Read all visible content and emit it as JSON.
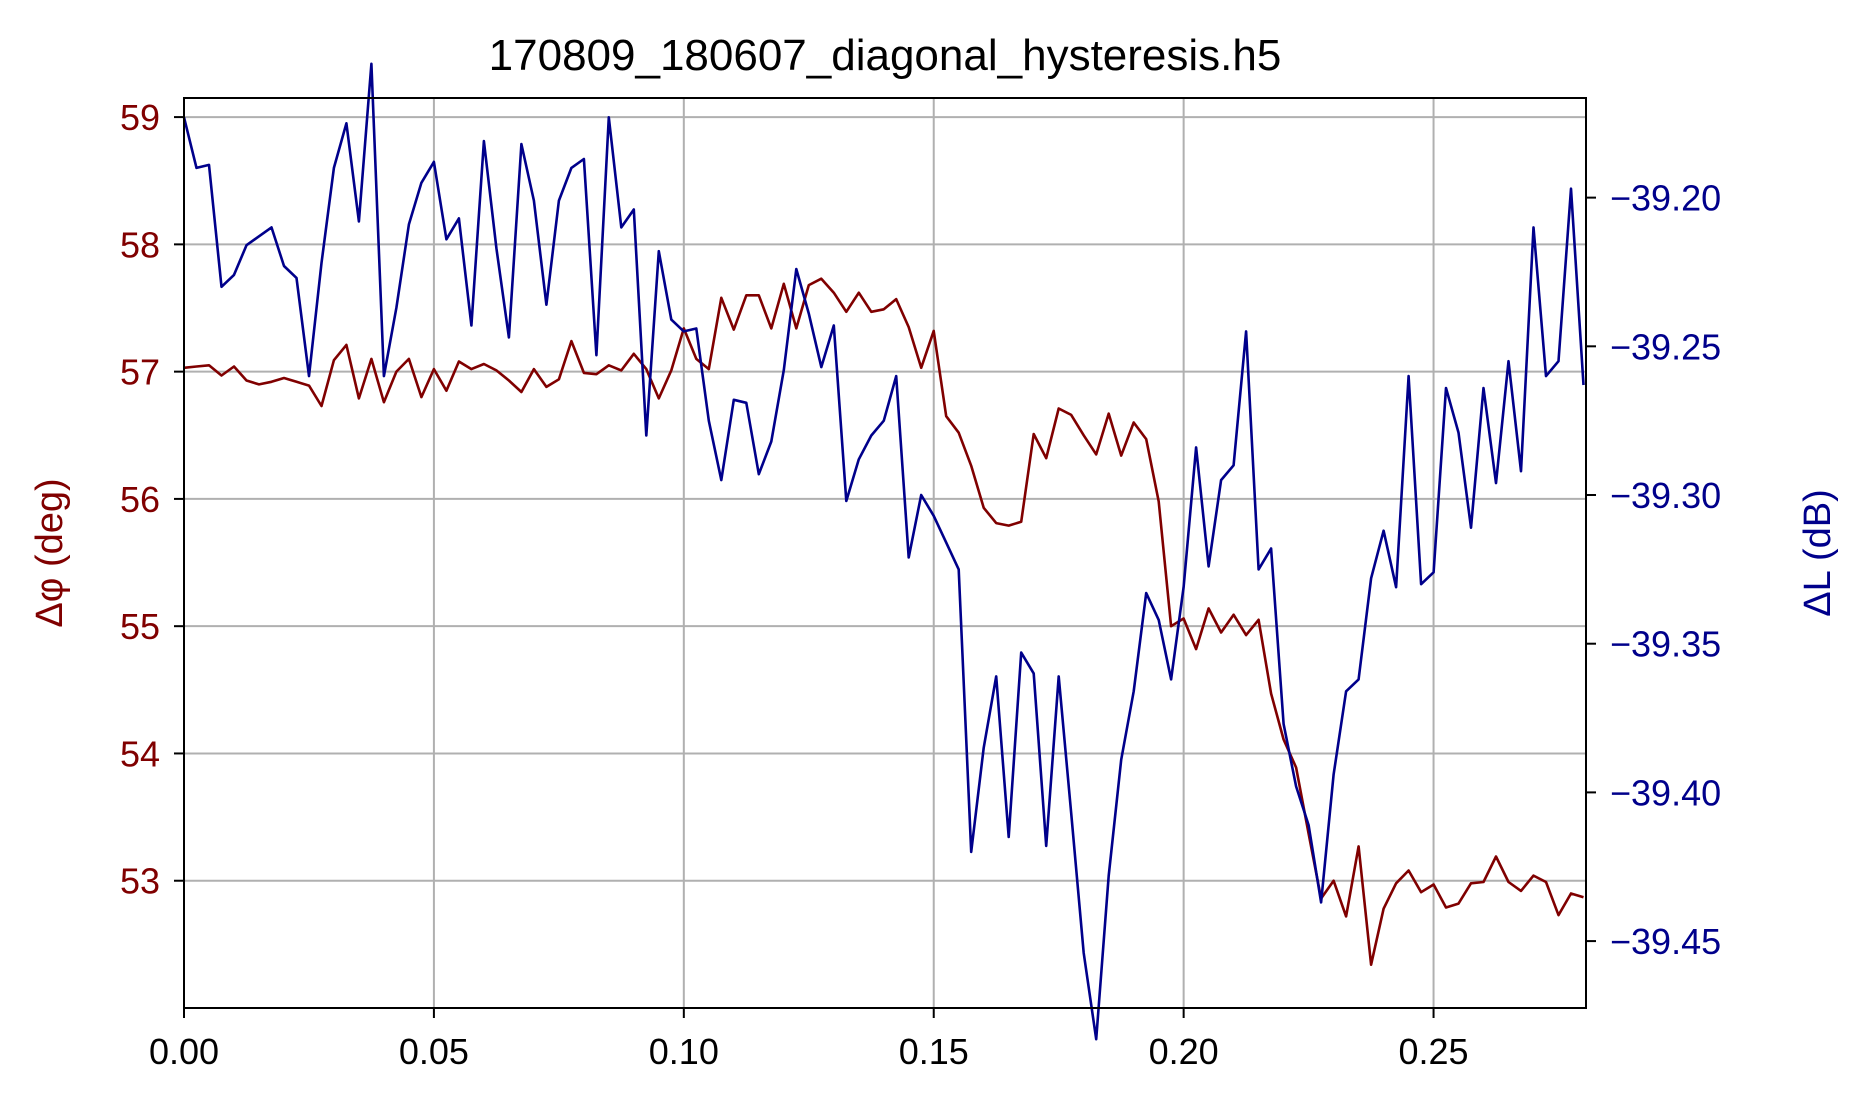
{
  "chart_data": {
    "type": "line",
    "title": "170809_180607_diagonal_hysteresis.h5",
    "xlabel": "",
    "ylabel_left": "Δφ (deg)",
    "ylabel_right": "ΔL (dB)",
    "xlim": [
      0.0,
      0.2805
    ],
    "ylim_left": [
      52.0,
      59.15
    ],
    "ylim_right": [
      -39.4725,
      -39.1665
    ],
    "x_ticks": [
      0.0,
      0.05,
      0.1,
      0.15,
      0.2,
      0.25
    ],
    "x_tick_labels": [
      "0.00",
      "0.05",
      "0.10",
      "0.15",
      "0.20",
      "0.25"
    ],
    "y_left_ticks": [
      53,
      54,
      55,
      56,
      57,
      58,
      59
    ],
    "y_left_tick_labels": [
      "53",
      "54",
      "55",
      "56",
      "57",
      "58",
      "59"
    ],
    "y_right_ticks": [
      -39.45,
      -39.4,
      -39.35,
      -39.3,
      -39.25,
      -39.2
    ],
    "y_right_tick_labels": [
      "−39.45",
      "−39.40",
      "−39.35",
      "−39.30",
      "−39.25",
      "−39.20"
    ],
    "grid": true,
    "colors": {
      "left": "#800000",
      "right": "#00008b",
      "grid": "#b0b0b0"
    },
    "x": [
      0.0,
      0.0025,
      0.005,
      0.0075,
      0.01,
      0.0125,
      0.015,
      0.0175,
      0.02,
      0.0225,
      0.025,
      0.0275,
      0.03,
      0.0325,
      0.035,
      0.0375,
      0.04,
      0.0425,
      0.045,
      0.0475,
      0.05,
      0.0525,
      0.055,
      0.0575,
      0.06,
      0.0625,
      0.065,
      0.0675,
      0.07,
      0.0725,
      0.075,
      0.0775,
      0.08,
      0.0825,
      0.085,
      0.0875,
      0.09,
      0.0925,
      0.095,
      0.0975,
      0.1,
      0.1025,
      0.105,
      0.1075,
      0.11,
      0.1125,
      0.115,
      0.1175,
      0.12,
      0.1225,
      0.125,
      0.1275,
      0.13,
      0.1325,
      0.135,
      0.1375,
      0.14,
      0.1425,
      0.145,
      0.1475,
      0.15,
      0.1525,
      0.155,
      0.1575,
      0.16,
      0.1625,
      0.165,
      0.1675,
      0.17,
      0.1725,
      0.175,
      0.1775,
      0.18,
      0.1825,
      0.185,
      0.1875,
      0.19,
      0.1925,
      0.195,
      0.1975,
      0.2,
      0.2025,
      0.205,
      0.2075,
      0.21,
      0.2125,
      0.215,
      0.2175,
      0.22,
      0.2225,
      0.225,
      0.2275,
      0.23,
      0.2325,
      0.235,
      0.2375,
      0.24,
      0.2425,
      0.245,
      0.2475,
      0.25,
      0.2525,
      0.255,
      0.2575,
      0.26,
      0.2625,
      0.265,
      0.2675,
      0.27,
      0.2725,
      0.275,
      0.2775,
      0.28
    ],
    "series": [
      {
        "axis": "left",
        "color": "#800000",
        "values": [
          57.03,
          57.04,
          57.05,
          56.97,
          57.04,
          56.93,
          56.9,
          56.92,
          56.95,
          56.92,
          56.89,
          56.73,
          57.09,
          57.21,
          56.79,
          57.1,
          56.76,
          57.0,
          57.1,
          56.8,
          57.02,
          56.85,
          57.08,
          57.02,
          57.06,
          57.01,
          56.93,
          56.84,
          57.02,
          56.88,
          56.94,
          57.24,
          56.99,
          56.98,
          57.05,
          57.01,
          57.14,
          57.02,
          56.79,
          57.01,
          57.34,
          57.1,
          57.02,
          57.58,
          57.33,
          57.6,
          57.6,
          57.34,
          57.69,
          57.34,
          57.68,
          57.73,
          57.62,
          57.47,
          57.62,
          57.47,
          57.49,
          57.57,
          57.35,
          57.03,
          57.32,
          56.65,
          56.52,
          56.26,
          55.93,
          55.81,
          55.79,
          55.82,
          56.51,
          56.32,
          56.71,
          56.66,
          56.5,
          56.35,
          56.67,
          56.34,
          56.6,
          56.47,
          55.98,
          55.0,
          55.06,
          54.82,
          55.14,
          54.95,
          55.09,
          54.93,
          55.05,
          54.47,
          54.11,
          53.89,
          53.37,
          52.86,
          53.0,
          52.72,
          53.27,
          52.34,
          52.78,
          52.98,
          53.08,
          52.91,
          52.97,
          52.79,
          52.82,
          52.98,
          52.99,
          53.19,
          52.99,
          52.92,
          53.04,
          52.99,
          52.73,
          52.9,
          52.87
        ]
      },
      {
        "axis": "right",
        "color": "#00008b",
        "values": [
          -39.173,
          -39.19,
          -39.189,
          -39.23,
          -39.226,
          -39.216,
          -39.213,
          -39.21,
          -39.223,
          -39.227,
          -39.26,
          -39.222,
          -39.19,
          -39.175,
          -39.208,
          -39.155,
          -39.26,
          -39.237,
          -39.209,
          -39.195,
          -39.188,
          -39.214,
          -39.207,
          -39.243,
          -39.181,
          -39.217,
          -39.247,
          -39.182,
          -39.201,
          -39.236,
          -39.201,
          -39.19,
          -39.187,
          -39.253,
          -39.173,
          -39.21,
          -39.204,
          -39.28,
          -39.218,
          -39.241,
          -39.245,
          -39.244,
          -39.275,
          -39.295,
          -39.268,
          -39.269,
          -39.293,
          -39.282,
          -39.258,
          -39.224,
          -39.239,
          -39.257,
          -39.243,
          -39.302,
          -39.288,
          -39.28,
          -39.275,
          -39.26,
          -39.321,
          -39.3,
          -39.307,
          -39.316,
          -39.325,
          -39.42,
          -39.385,
          -39.361,
          -39.415,
          -39.353,
          -39.36,
          -39.418,
          -39.361,
          -39.407,
          -39.454,
          -39.483,
          -39.428,
          -39.389,
          -39.366,
          -39.333,
          -39.342,
          -39.362,
          -39.331,
          -39.284,
          -39.324,
          -39.295,
          -39.29,
          -39.245,
          -39.325,
          -39.318,
          -39.377,
          -39.398,
          -39.411,
          -39.437,
          -39.394,
          -39.366,
          -39.362,
          -39.328,
          -39.312,
          -39.331,
          -39.26,
          -39.33,
          -39.326,
          -39.264,
          -39.279,
          -39.311,
          -39.264,
          -39.296,
          -39.255,
          -39.292,
          -39.21,
          -39.26,
          -39.255,
          -39.197,
          -39.263
        ]
      }
    ]
  }
}
